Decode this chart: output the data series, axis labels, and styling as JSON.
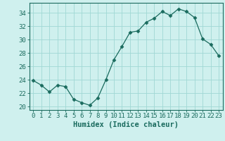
{
  "x": [
    0,
    1,
    2,
    3,
    4,
    5,
    6,
    7,
    8,
    9,
    10,
    11,
    12,
    13,
    14,
    15,
    16,
    17,
    18,
    19,
    20,
    21,
    22,
    23
  ],
  "y": [
    23.9,
    23.2,
    22.2,
    23.2,
    23.0,
    21.1,
    20.6,
    20.2,
    21.3,
    24.0,
    27.0,
    29.0,
    31.1,
    31.3,
    32.6,
    33.2,
    34.2,
    33.6,
    34.6,
    34.2,
    33.3,
    30.1,
    29.3,
    27.6
  ],
  "line_color": "#1a6b5e",
  "marker": "D",
  "marker_size": 2.5,
  "bg_color": "#cff0ee",
  "grid_color": "#a0d8d4",
  "xlabel": "Humidex (Indice chaleur)",
  "ylabel_ticks": [
    20,
    22,
    24,
    26,
    28,
    30,
    32,
    34
  ],
  "ylim": [
    19.5,
    35.5
  ],
  "xlim": [
    -0.5,
    23.5
  ],
  "tick_fontsize": 6.5,
  "xlabel_fontsize": 7.5
}
